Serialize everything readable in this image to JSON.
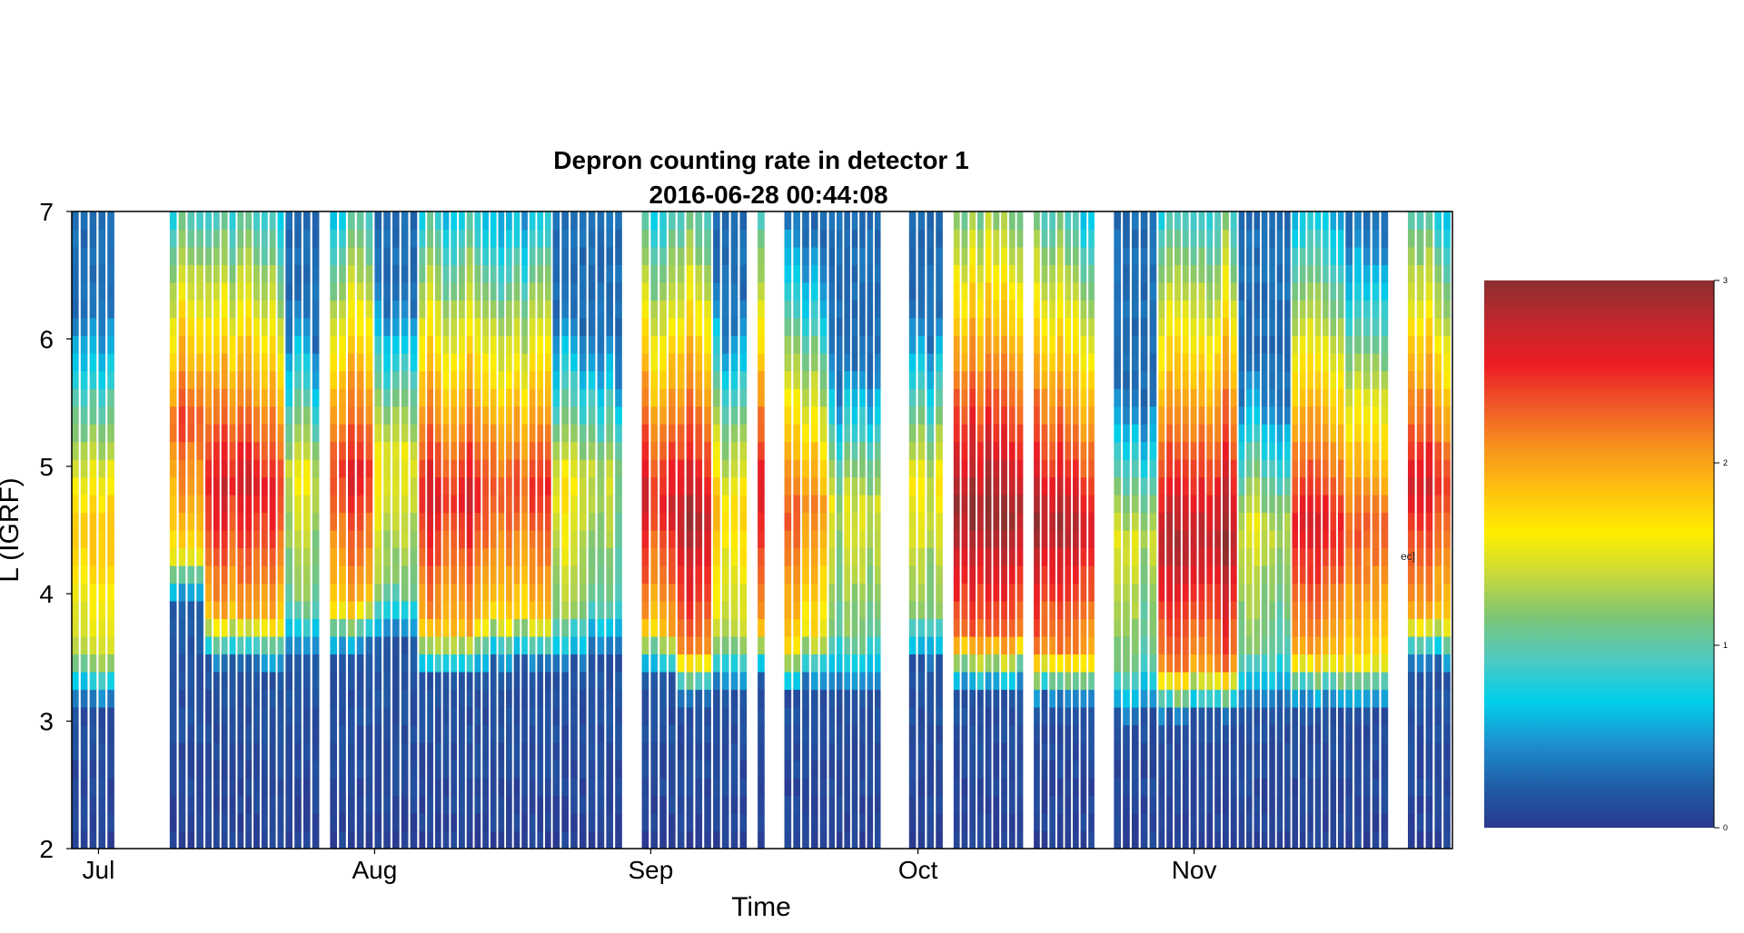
{
  "chart_data": {
    "type": "heatmap",
    "title": "Depron counting rate in detector 1",
    "subtitle": "2016-06-28 00:44:08",
    "xlabel": "Time",
    "ylabel": "L (IGRF)",
    "x_axis": {
      "kind": "date",
      "range": [
        "2016-06-28",
        "2016-11-30"
      ],
      "ticks": [
        {
          "date": "2016-07-01",
          "label": "Jul"
        },
        {
          "date": "2016-08-01",
          "label": "Aug"
        },
        {
          "date": "2016-09-01",
          "label": "Sep"
        },
        {
          "date": "2016-10-01",
          "label": "Oct"
        },
        {
          "date": "2016-11-01",
          "label": "Nov"
        }
      ]
    },
    "y_axis": {
      "range": [
        2,
        7
      ],
      "ticks": [
        {
          "value": 2,
          "label": "2"
        },
        {
          "value": 3,
          "label": "3"
        },
        {
          "value": 4,
          "label": "4"
        },
        {
          "value": 5,
          "label": "5"
        },
        {
          "value": 6,
          "label": "6"
        },
        {
          "value": 7,
          "label": "7"
        }
      ]
    },
    "colorbar": {
      "range": [
        0,
        3
      ],
      "ticks": [
        {
          "value": 0,
          "label": "0"
        },
        {
          "value": 1,
          "label": "1"
        },
        {
          "value": 2,
          "label": "2"
        },
        {
          "value": 3,
          "label": "3"
        }
      ],
      "colors": [
        "#2b3990",
        "#1f5fa8",
        "#1e8fd0",
        "#00cfea",
        "#4fc9c2",
        "#7cc576",
        "#c7d93a",
        "#ffee00",
        "#ffc20e",
        "#f7941d",
        "#f05a28",
        "#ed1c24",
        "#c1272d",
        "#8b2f2f"
      ]
    },
    "gaps": [
      [
        "2016-07-03",
        "2016-07-05"
      ],
      [
        "2016-07-05",
        "2016-07-09"
      ],
      [
        "2016-07-26",
        "2016-07-27"
      ],
      [
        "2016-08-01",
        "2016-08-01"
      ],
      [
        "2016-08-25",
        "2016-08-25"
      ],
      [
        "2016-08-29",
        "2016-08-31"
      ],
      [
        "2016-09-12",
        "2016-09-13"
      ],
      [
        "2016-09-14",
        "2016-09-16"
      ],
      [
        "2016-09-27",
        "2016-09-30"
      ],
      [
        "2016-10-04",
        "2016-10-05"
      ],
      [
        "2016-10-13",
        "2016-10-14"
      ],
      [
        "2016-10-21",
        "2016-10-23"
      ],
      [
        "2016-11-23",
        "2016-11-25"
      ]
    ],
    "columns": [
      {
        "start": "2016-06-28",
        "end": "2016-07-03",
        "boundary_L": 3.3,
        "peak": 1.9
      },
      {
        "start": "2016-07-09",
        "end": "2016-07-13",
        "boundary_L": 4.1,
        "peak": 2.3
      },
      {
        "start": "2016-07-13",
        "end": "2016-07-22",
        "boundary_L": 3.6,
        "peak": 2.6
      },
      {
        "start": "2016-07-22",
        "end": "2016-07-26",
        "boundary_L": 3.7,
        "peak": 1.5
      },
      {
        "start": "2016-07-27",
        "end": "2016-08-01",
        "boundary_L": 3.7,
        "peak": 2.5
      },
      {
        "start": "2016-08-01",
        "end": "2016-08-06",
        "boundary_L": 3.8,
        "peak": 1.6
      },
      {
        "start": "2016-08-06",
        "end": "2016-08-14",
        "boundary_L": 3.5,
        "peak": 2.6
      },
      {
        "start": "2016-08-14",
        "end": "2016-08-21",
        "boundary_L": 3.6,
        "peak": 2.4
      },
      {
        "start": "2016-08-21",
        "end": "2016-08-25",
        "boundary_L": 3.6,
        "peak": 1.6
      },
      {
        "start": "2016-08-25",
        "end": "2016-08-29",
        "boundary_L": 3.7,
        "peak": 1.3
      },
      {
        "start": "2016-08-31",
        "end": "2016-09-04",
        "boundary_L": 3.5,
        "peak": 2.6
      },
      {
        "start": "2016-09-04",
        "end": "2016-09-08",
        "boundary_L": 3.3,
        "peak": 2.9
      },
      {
        "start": "2016-09-08",
        "end": "2016-09-12",
        "boundary_L": 3.4,
        "peak": 1.8
      },
      {
        "start": "2016-09-13",
        "end": "2016-09-14",
        "boundary_L": 3.5,
        "peak": 2.8
      },
      {
        "start": "2016-09-16",
        "end": "2016-09-21",
        "boundary_L": 3.4,
        "peak": 2.2
      },
      {
        "start": "2016-09-21",
        "end": "2016-09-27",
        "boundary_L": 3.4,
        "peak": 1.4
      },
      {
        "start": "2016-09-30",
        "end": "2016-10-04",
        "boundary_L": 3.6,
        "peak": 1.5
      },
      {
        "start": "2016-10-05",
        "end": "2016-10-13",
        "boundary_L": 3.4,
        "peak": 2.9
      },
      {
        "start": "2016-10-14",
        "end": "2016-10-21",
        "boundary_L": 3.3,
        "peak": 2.8
      },
      {
        "start": "2016-10-23",
        "end": "2016-10-28",
        "boundary_L": 3.2,
        "peak": 1.4
      },
      {
        "start": "2016-10-28",
        "end": "2016-11-06",
        "boundary_L": 3.2,
        "peak": 2.9
      },
      {
        "start": "2016-11-06",
        "end": "2016-11-12",
        "boundary_L": 3.3,
        "peak": 1.4
      },
      {
        "start": "2016-11-12",
        "end": "2016-11-18",
        "boundary_L": 3.3,
        "peak": 2.6
      },
      {
        "start": "2016-11-18",
        "end": "2016-11-23",
        "boundary_L": 3.3,
        "peak": 2.4
      },
      {
        "start": "2016-11-25",
        "end": "2016-11-30",
        "boundary_L": 3.6,
        "peak": 2.6
      }
    ],
    "grid": false,
    "legend": "colorbar-right"
  },
  "overlay_note": "ec]"
}
